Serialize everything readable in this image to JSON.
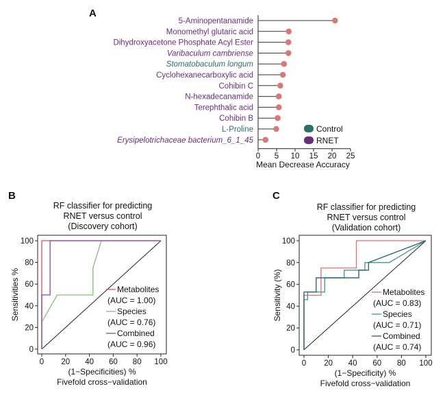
{
  "chart_data": [
    {
      "panel": "A",
      "type": "scatter",
      "style": "lollipop",
      "xlabel": "Mean Decrease Accuracy",
      "xlim": [
        0,
        25
      ],
      "xticks": [
        0,
        5,
        10,
        15,
        20,
        25
      ],
      "categories": [
        {
          "label": "5-Aminopentanamide",
          "value": 20.8,
          "group": "RNET",
          "italic": false
        },
        {
          "label": "Monomethyl glutaric acid",
          "value": 8.3,
          "group": "RNET",
          "italic": false
        },
        {
          "label": "Dihydroxyacetone Phosphate Acyl Ester",
          "value": 8.2,
          "group": "RNET",
          "italic": false
        },
        {
          "label": "Varibaculum cambriense",
          "value": 8.2,
          "group": "RNET",
          "italic": true
        },
        {
          "label": "Stomatobaculum longum",
          "value": 7.0,
          "group": "Control",
          "italic": true
        },
        {
          "label": "Cyclohexanecarboxylic acid",
          "value": 6.7,
          "group": "RNET",
          "italic": false
        },
        {
          "label": "Cohibin C",
          "value": 6.0,
          "group": "RNET",
          "italic": false
        },
        {
          "label": "N-hexadecanamide",
          "value": 5.6,
          "group": "RNET",
          "italic": false
        },
        {
          "label": "Terephthalic acid",
          "value": 5.6,
          "group": "RNET",
          "italic": false
        },
        {
          "label": "Cohibin B",
          "value": 5.3,
          "group": "RNET",
          "italic": false
        },
        {
          "label": "L-Proline",
          "value": 4.9,
          "group": "Control",
          "italic": false
        },
        {
          "label": "Erysipelotrichaceae bacterium_6_1_45",
          "value": 2.0,
          "group": "RNET",
          "italic": true
        }
      ],
      "legend": [
        {
          "name": "Control",
          "color": "#2e6f67"
        },
        {
          "name": "RNET",
          "color": "#6b2c7e"
        }
      ],
      "legend_position": "bottom-right",
      "point_color": "#d97a72",
      "label_colors": {
        "RNET": "#6b2c7e",
        "Control": "#2e6f67"
      }
    },
    {
      "panel": "B",
      "type": "line",
      "title": [
        "RF classifier for predicting",
        "RNET versus control",
        "(Discovery cohort)"
      ],
      "xlabel": [
        "(1−Specificities) %",
        "Fivefold cross−validation"
      ],
      "ylabel": "Sensitivities %",
      "xlim": [
        0,
        100
      ],
      "ylim": [
        0,
        100
      ],
      "xticks": [
        0,
        20,
        40,
        60,
        80,
        100
      ],
      "yticks": [
        0,
        20,
        40,
        60,
        80,
        100
      ],
      "series": [
        {
          "name": "Metabolites",
          "auc": "(AUC = 1.00)",
          "color": "#d9534f",
          "x": [
            0,
            0,
            0,
            100
          ],
          "y": [
            0,
            50,
            100,
            100
          ]
        },
        {
          "name": "Species",
          "auc": "(AUC = 0.76)",
          "color": "#7cc26f",
          "x": [
            0,
            0,
            13,
            43,
            43,
            50,
            100
          ],
          "y": [
            0,
            25,
            50,
            50,
            75,
            100,
            100
          ]
        },
        {
          "name": "Combined",
          "auc": "(AUC = 0.96)",
          "color": "#8e44ad",
          "x": [
            0,
            0,
            7,
            7,
            100
          ],
          "y": [
            0,
            50,
            50,
            100,
            100
          ]
        }
      ]
    },
    {
      "panel": "C",
      "type": "line",
      "title": [
        "RF classifier for predicting",
        "RNET versus control",
        "(Validation cohort)"
      ],
      "xlabel": [
        "(1−Specificity) %",
        "Fivefold cross−validation"
      ],
      "ylabel": "Sensitivity (%)",
      "xlim": [
        0,
        100
      ],
      "ylim": [
        0,
        100
      ],
      "xticks": [
        0,
        20,
        40,
        60,
        80,
        100
      ],
      "yticks": [
        0,
        20,
        40,
        60,
        80,
        100
      ],
      "series": [
        {
          "name": "Metabolites",
          "auc": "(AUC = 0.83)",
          "color": "#e06b78",
          "x": [
            0,
            0,
            7,
            14,
            14,
            43,
            43,
            100
          ],
          "y": [
            0,
            50,
            50,
            50,
            75,
            75,
            100,
            100
          ]
        },
        {
          "name": "Species",
          "auc": "(AUC = 0.71)",
          "color": "#3a9a86",
          "x": [
            0,
            0,
            3,
            3,
            17,
            17,
            33,
            33,
            50,
            50,
            70,
            100
          ],
          "y": [
            0,
            46,
            46,
            53,
            53,
            66,
            66,
            73,
            73,
            80,
            80,
            100
          ]
        },
        {
          "name": "Combined",
          "auc": "(AUC = 0.74)",
          "color": "#1f5f78",
          "x": [
            0,
            0,
            10,
            10,
            45,
            45,
            53,
            53,
            100
          ],
          "y": [
            0,
            53,
            53,
            66,
            66,
            73,
            73,
            80,
            100
          ]
        }
      ]
    }
  ]
}
